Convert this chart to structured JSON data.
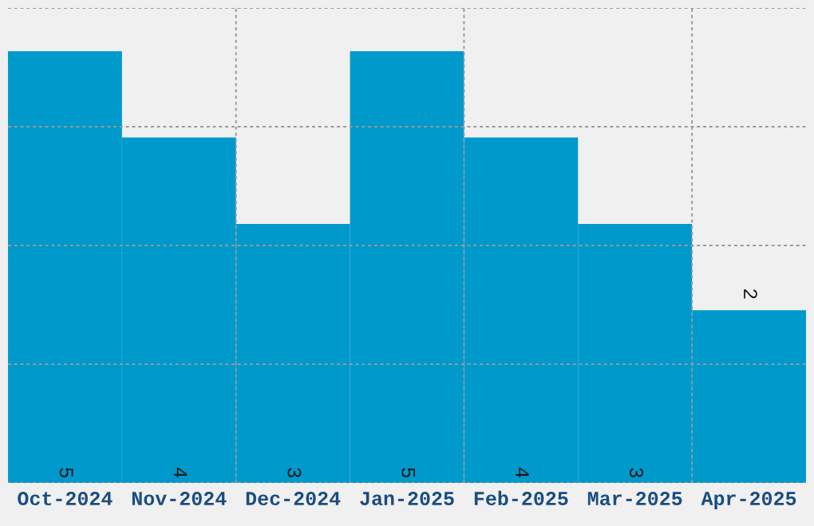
{
  "chart_data": {
    "type": "bar",
    "categories": [
      "Oct-2024",
      "Nov-2024",
      "Dec-2024",
      "Jan-2025",
      "Feb-2025",
      "Mar-2025",
      "Apr-2025"
    ],
    "values": [
      5,
      4,
      3,
      5,
      4,
      3,
      2
    ],
    "color": "#0099cc",
    "data_labels": true,
    "ylim": [
      0,
      5.5
    ],
    "yticks": [
      {
        "value": 0,
        "label": null
      },
      {
        "value": 1.375,
        "label": null
      },
      {
        "value": 2.75,
        "label": null
      },
      {
        "value": 4.125,
        "label": null
      },
      {
        "value": 5.5,
        "label": null
      }
    ],
    "grid": true,
    "tick_labels": "x"
  }
}
